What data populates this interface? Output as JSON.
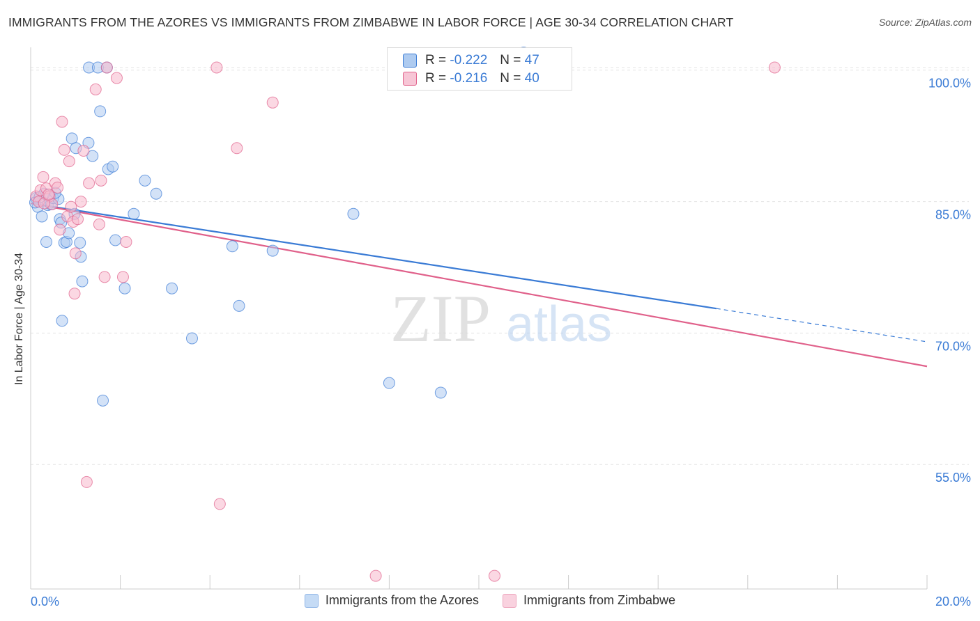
{
  "title": "IMMIGRANTS FROM THE AZORES VS IMMIGRANTS FROM ZIMBABWE IN LABOR FORCE | AGE 30-34 CORRELATION CHART",
  "source": "Source: ZipAtlas.com",
  "watermark": {
    "zip": "ZIP",
    "atlas": "atlas"
  },
  "colors": {
    "blue": "#3a7bd5",
    "blue_fill": "#aecbf0",
    "pink": "#e0608a",
    "pink_fill": "#f7b8cc",
    "grid": "#e3e3e3",
    "axis_text": "#3a7bd5"
  },
  "correlation_box": {
    "rows": [
      {
        "series": "Immigrants from the Azores",
        "r_label": "R =",
        "r_value": "-0.222",
        "n_label": "N =",
        "n_value": "47"
      },
      {
        "series": "Immigrants from Zimbabwe",
        "r_label": "R =",
        "r_value": "-0.216",
        "n_label": "N =",
        "n_value": "40"
      }
    ]
  },
  "legend": {
    "items": [
      "Immigrants from the Azores",
      "Immigrants from Zimbabwe"
    ]
  },
  "chart_data": {
    "type": "scatter",
    "title": "IMMIGRANTS FROM THE AZORES VS IMMIGRANTS FROM ZIMBABWE IN LABOR FORCE | AGE 30-34 CORRELATION CHART",
    "xlabel": "",
    "ylabel": "In Labor Force | Age 30-34",
    "xlim": [
      0,
      20
    ],
    "ylim": [
      40.8,
      102.6
    ],
    "x_tick_labels": [
      "0.0%",
      "20.0%"
    ],
    "y_ticks": [
      55,
      70,
      85,
      100
    ],
    "y_tick_labels": [
      "55.0%",
      "70.0%",
      "85.0%",
      "100.0%"
    ],
    "series": [
      {
        "name": "Immigrants from the Azores",
        "color": "#3a7bd5",
        "points": [
          [
            0.12,
            85.4
          ],
          [
            0.16,
            84.4
          ],
          [
            0.25,
            83.3
          ],
          [
            0.35,
            80.4
          ],
          [
            0.38,
            84.6
          ],
          [
            0.45,
            84.7
          ],
          [
            0.5,
            85.4
          ],
          [
            0.62,
            85.3
          ],
          [
            0.65,
            83.0
          ],
          [
            0.68,
            82.6
          ],
          [
            0.75,
            80.3
          ],
          [
            0.8,
            80.4
          ],
          [
            0.85,
            81.4
          ],
          [
            0.92,
            92.2
          ],
          [
            0.98,
            83.6
          ],
          [
            1.01,
            91.1
          ],
          [
            1.1,
            80.3
          ],
          [
            1.12,
            78.7
          ],
          [
            1.15,
            75.9
          ],
          [
            1.29,
            91.7
          ],
          [
            1.38,
            90.2
          ],
          [
            1.55,
            95.3
          ],
          [
            1.61,
            62.3
          ],
          [
            1.73,
            88.7
          ],
          [
            1.83,
            89.0
          ],
          [
            1.89,
            80.6
          ],
          [
            2.1,
            75.1
          ],
          [
            2.3,
            83.6
          ],
          [
            2.55,
            87.4
          ],
          [
            2.8,
            85.9
          ],
          [
            3.15,
            75.1
          ],
          [
            3.6,
            69.4
          ],
          [
            4.5,
            79.9
          ],
          [
            4.65,
            73.1
          ],
          [
            5.4,
            79.4
          ],
          [
            7.2,
            83.6
          ],
          [
            8.0,
            64.3
          ],
          [
            9.15,
            63.2
          ],
          [
            11.0,
            102.0
          ],
          [
            1.3,
            100.3
          ],
          [
            1.5,
            100.3
          ],
          [
            1.7,
            100.3
          ],
          [
            0.1,
            84.9
          ],
          [
            0.2,
            85.5
          ],
          [
            0.3,
            85.9
          ],
          [
            0.55,
            86.0
          ],
          [
            0.7,
            71.4
          ]
        ]
      },
      {
        "name": "Immigrants from Zimbabwe",
        "color": "#e0608a",
        "points": [
          [
            0.12,
            85.6
          ],
          [
            0.18,
            85.0
          ],
          [
            0.22,
            86.3
          ],
          [
            0.28,
            87.8
          ],
          [
            0.35,
            86.5
          ],
          [
            0.42,
            85.6
          ],
          [
            0.48,
            84.7
          ],
          [
            0.55,
            87.1
          ],
          [
            0.6,
            86.6
          ],
          [
            0.65,
            81.8
          ],
          [
            0.7,
            94.1
          ],
          [
            0.75,
            90.9
          ],
          [
            0.82,
            83.3
          ],
          [
            0.86,
            89.6
          ],
          [
            0.95,
            82.7
          ],
          [
            0.98,
            74.5
          ],
          [
            1.0,
            79.1
          ],
          [
            1.05,
            83.0
          ],
          [
            1.12,
            85.0
          ],
          [
            1.18,
            90.8
          ],
          [
            1.25,
            53.0
          ],
          [
            1.3,
            87.1
          ],
          [
            1.45,
            97.8
          ],
          [
            1.53,
            82.4
          ],
          [
            1.57,
            87.4
          ],
          [
            1.65,
            76.4
          ],
          [
            1.92,
            99.1
          ],
          [
            2.06,
            76.4
          ],
          [
            2.13,
            80.4
          ],
          [
            4.15,
            100.3
          ],
          [
            4.22,
            50.5
          ],
          [
            4.6,
            91.1
          ],
          [
            5.4,
            96.3
          ],
          [
            7.7,
            42.3
          ],
          [
            10.35,
            42.3
          ],
          [
            16.6,
            100.3
          ],
          [
            0.3,
            84.8
          ],
          [
            0.4,
            85.8
          ],
          [
            0.9,
            84.4
          ],
          [
            1.7,
            100.3
          ]
        ]
      }
    ],
    "trend_lines": [
      {
        "series": "Immigrants from the Azores",
        "x": [
          0,
          15.3
        ],
        "y": [
          84.8,
          72.8
        ],
        "dashed_extension_to_x": 20,
        "dashed_extension_y": 69.0
      },
      {
        "series": "Immigrants from Zimbabwe",
        "x": [
          0,
          20
        ],
        "y": [
          84.8,
          66.2
        ]
      }
    ]
  }
}
